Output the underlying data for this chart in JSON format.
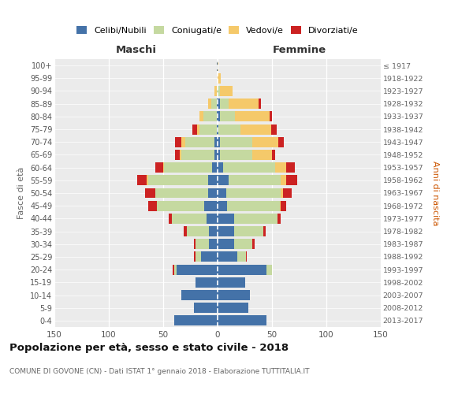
{
  "age_groups": [
    "0-4",
    "5-9",
    "10-14",
    "15-19",
    "20-24",
    "25-29",
    "30-34",
    "35-39",
    "40-44",
    "45-49",
    "50-54",
    "55-59",
    "60-64",
    "65-69",
    "70-74",
    "75-79",
    "80-84",
    "85-89",
    "90-94",
    "95-99",
    "100+"
  ],
  "birth_years": [
    "2013-2017",
    "2008-2012",
    "2003-2007",
    "1998-2002",
    "1993-1997",
    "1988-1992",
    "1983-1987",
    "1978-1982",
    "1973-1977",
    "1968-1972",
    "1963-1967",
    "1958-1962",
    "1953-1957",
    "1948-1952",
    "1943-1947",
    "1938-1942",
    "1933-1937",
    "1928-1932",
    "1923-1927",
    "1918-1922",
    "≤ 1917"
  ],
  "maschi": {
    "celibi": [
      40,
      22,
      33,
      20,
      38,
      15,
      8,
      8,
      10,
      12,
      9,
      9,
      5,
      3,
      3,
      1,
      1,
      1,
      0,
      0,
      1
    ],
    "coniugati": [
      0,
      0,
      0,
      0,
      2,
      5,
      12,
      20,
      32,
      44,
      48,
      55,
      44,
      30,
      27,
      16,
      12,
      5,
      1,
      0,
      0
    ],
    "vedovi": [
      0,
      0,
      0,
      0,
      0,
      0,
      0,
      0,
      0,
      0,
      0,
      1,
      1,
      2,
      3,
      2,
      4,
      3,
      2,
      0,
      0
    ],
    "divorziati": [
      0,
      0,
      0,
      0,
      1,
      2,
      2,
      3,
      3,
      8,
      10,
      9,
      7,
      4,
      6,
      4,
      0,
      0,
      0,
      0,
      0
    ]
  },
  "femmine": {
    "nubili": [
      45,
      28,
      30,
      25,
      45,
      18,
      15,
      15,
      15,
      9,
      8,
      10,
      5,
      2,
      2,
      1,
      2,
      2,
      0,
      0,
      0
    ],
    "coniugate": [
      0,
      0,
      0,
      0,
      5,
      8,
      17,
      27,
      40,
      48,
      50,
      48,
      48,
      30,
      30,
      20,
      14,
      8,
      2,
      0,
      0
    ],
    "vedove": [
      0,
      0,
      0,
      0,
      0,
      0,
      0,
      0,
      0,
      1,
      2,
      5,
      10,
      18,
      24,
      28,
      32,
      28,
      12,
      3,
      1
    ],
    "divorziate": [
      0,
      0,
      0,
      0,
      0,
      1,
      2,
      2,
      3,
      5,
      8,
      10,
      8,
      3,
      5,
      5,
      2,
      2,
      0,
      0,
      0
    ]
  },
  "colors": {
    "celibi": "#4472A8",
    "coniugati": "#C5D9A0",
    "vedovi": "#F5C96A",
    "divorziati": "#CC2222"
  },
  "xlim": 150,
  "title": "Popolazione per età, sesso e stato civile - 2018",
  "subtitle": "COMUNE DI GOVONE (CN) - Dati ISTAT 1° gennaio 2018 - Elaborazione TUTTITALIA.IT",
  "ylabel": "Fasce di età",
  "ylabel_right": "Anni di nascita",
  "label_maschi": "Maschi",
  "label_femmine": "Femmine",
  "bg_color": "#ebebeb",
  "legend_labels": [
    "Celibi/Nubili",
    "Coniugati/e",
    "Vedovi/e",
    "Divorziati/e"
  ]
}
